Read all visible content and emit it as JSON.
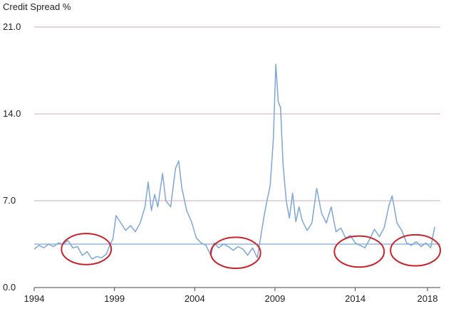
{
  "chart_data": {
    "type": "line",
    "title": "Credit Spread %",
    "xlabel": "",
    "ylabel": "",
    "xlim": [
      1994.0,
      2019.3
    ],
    "ylim": [
      0.0,
      21.0
    ],
    "y_ticks": [
      "0.0",
      "7.0",
      "14.0",
      "21.0"
    ],
    "y_tick_values": [
      0,
      7,
      14,
      21
    ],
    "x_ticks": [
      "1994",
      "1999",
      "2004",
      "2009",
      "2014",
      "2018"
    ],
    "x_tick_values": [
      1994,
      1999,
      2004,
      2009,
      2014,
      2018.5
    ],
    "grid": "horizontal",
    "legend": "none",
    "colors": {
      "series": "#7ea6d6",
      "grid": "#d4aeb4",
      "reference": "#7ea6d6",
      "highlight": "#c8232b"
    },
    "series": [
      {
        "x": [
          1994.0,
          1994.3,
          1994.6,
          1994.9,
          1995.2,
          1995.5,
          1995.8,
          1996.1,
          1996.4,
          1996.7,
          1997.0,
          1997.3,
          1997.6,
          1997.9,
          1998.2,
          1998.5,
          1998.7,
          1998.9,
          1999.1,
          1999.4,
          1999.7,
          2000.0,
          2000.3,
          2000.6,
          2000.9,
          2001.1,
          2001.3,
          2001.5,
          2001.7,
          2002.0,
          2002.2,
          2002.5,
          2002.8,
          2003.0,
          2003.2,
          2003.5,
          2003.8,
          2004.1,
          2004.4,
          2004.7,
          2005.0,
          2005.2,
          2005.5,
          2005.8,
          2006.1,
          2006.4,
          2006.7,
          2007.0,
          2007.3,
          2007.6,
          2007.9,
          2008.1,
          2008.3,
          2008.5,
          2008.7,
          2008.9,
          2009.05,
          2009.2,
          2009.35,
          2009.5,
          2009.7,
          2009.9,
          2010.1,
          2010.3,
          2010.5,
          2010.7,
          2011.0,
          2011.3,
          2011.6,
          2011.9,
          2012.2,
          2012.5,
          2012.8,
          2013.1,
          2013.4,
          2013.7,
          2014.0,
          2014.3,
          2014.6,
          2014.9,
          2015.2,
          2015.5,
          2015.8,
          2016.1,
          2016.3,
          2016.6,
          2016.9,
          2017.2,
          2017.5,
          2017.8,
          2018.1,
          2018.4,
          2018.7,
          2018.95
        ],
        "y": [
          3.1,
          3.4,
          3.2,
          3.5,
          3.3,
          3.6,
          3.5,
          3.8,
          3.2,
          3.3,
          2.6,
          2.9,
          2.3,
          2.5,
          2.4,
          2.7,
          3.4,
          3.9,
          5.8,
          5.2,
          4.6,
          5.0,
          4.5,
          5.2,
          6.5,
          8.5,
          6.2,
          7.5,
          6.5,
          9.2,
          7.0,
          6.5,
          9.6,
          10.2,
          8.0,
          6.2,
          5.3,
          4.0,
          3.6,
          3.4,
          2.6,
          3.6,
          3.2,
          3.5,
          3.3,
          3.0,
          3.3,
          3.1,
          2.6,
          3.2,
          2.4,
          4.0,
          5.6,
          7.0,
          8.2,
          12.0,
          18.0,
          15.0,
          14.5,
          10.0,
          7.0,
          5.6,
          7.6,
          5.3,
          6.5,
          5.4,
          4.6,
          5.2,
          8.0,
          6.0,
          5.2,
          6.5,
          4.5,
          4.8,
          4.0,
          4.2,
          3.6,
          3.4,
          3.2,
          3.9,
          4.7,
          4.1,
          4.8,
          6.6,
          7.4,
          5.2,
          4.6,
          3.6,
          3.4,
          3.7,
          3.3,
          3.6,
          3.2,
          4.9
        ]
      }
    ],
    "reference_line": {
      "x": [
        1994.0,
        2019.3
      ],
      "y": [
        3.5,
        3.5
      ]
    },
    "highlights": [
      {
        "cx": 1997.25,
        "cy": 3.1,
        "rx": 1.55,
        "ry": 1.25
      },
      {
        "cx": 2006.55,
        "cy": 2.8,
        "rx": 1.55,
        "ry": 1.25
      },
      {
        "cx": 2014.25,
        "cy": 2.9,
        "rx": 1.55,
        "ry": 1.25
      },
      {
        "cx": 2017.75,
        "cy": 3.0,
        "rx": 1.55,
        "ry": 1.25
      }
    ]
  }
}
